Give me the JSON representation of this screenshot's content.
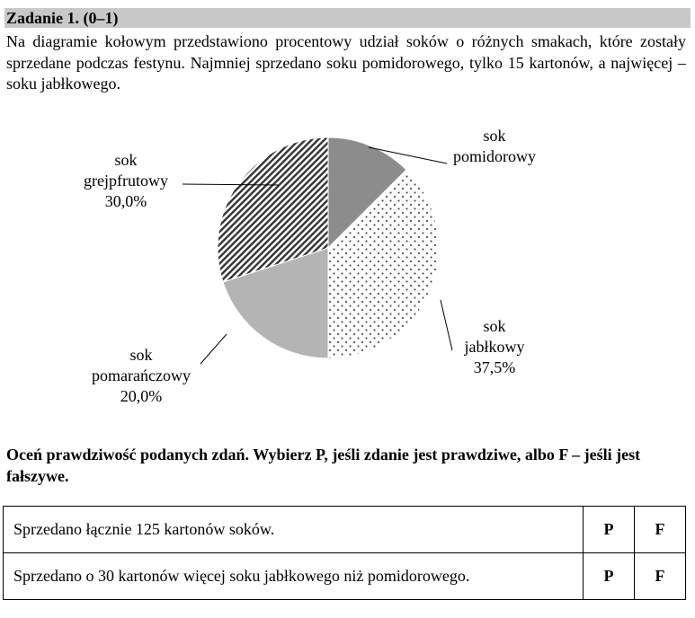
{
  "task": {
    "title": "Zadanie 1. (0–1)",
    "intro": "Na diagramie kołowym przedstawiono procentowy udział soków o różnych smakach, które zostały sprzedane podczas festynu. Najmniej sprzedano soku pomidorowego, tylko 15 kartonów, a najwięcej – soku jabłkowego.",
    "instruction": "Oceń prawdziwość podanych zdań. Wybierz P, jeśli zdanie jest prawdziwe, albo F – jeśli jest fałszywe."
  },
  "chart_data": {
    "type": "pie",
    "slices": [
      {
        "label_lines": [
          "sok",
          "pomidorowy"
        ],
        "pct_text": "",
        "value": 12.5,
        "pattern": "solid-dark",
        "color": "#8c8c8c"
      },
      {
        "label_lines": [
          "sok",
          "jabłkowy"
        ],
        "pct_text": "37,5%",
        "value": 37.5,
        "pattern": "dots",
        "color": "#ffffff"
      },
      {
        "label_lines": [
          "sok",
          "pomarańczowy"
        ],
        "pct_text": "20,0%",
        "value": 20.0,
        "pattern": "solid-light",
        "color": "#b4b4b4"
      },
      {
        "label_lines": [
          "sok",
          "grejpfrutowy"
        ],
        "pct_text": "30,0%",
        "value": 30.0,
        "pattern": "diagonal-hatch",
        "color": "#ffffff"
      }
    ]
  },
  "statements": [
    {
      "text": "Sprzedano łącznie 125 kartonów soków.",
      "p": "P",
      "f": "F"
    },
    {
      "text": "Sprzedano o 30 kartonów więcej soku jabłkowego niż pomidorowego.",
      "p": "P",
      "f": "F"
    }
  ]
}
